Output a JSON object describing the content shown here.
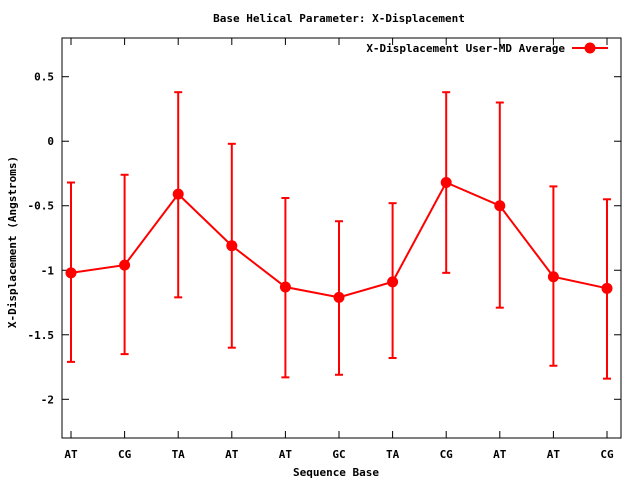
{
  "chart_data": {
    "type": "line",
    "title": "Base  Helical Parameter: X-Displacement",
    "xlabel": "Sequence Base",
    "ylabel": "X-Displacement (Angstroms)",
    "categories": [
      "AT",
      "CG",
      "TA",
      "AT",
      "AT",
      "GC",
      "TA",
      "CG",
      "AT",
      "AT",
      "CG"
    ],
    "ylim": [
      -2.3,
      0.8
    ],
    "yticks": [
      0.5,
      0,
      -0.5,
      -1,
      -1.5,
      -2
    ],
    "ytick_labels": [
      "0.5",
      "0",
      "-0.5",
      "-1",
      "-1.5",
      "-2"
    ],
    "grid": false,
    "legend_position": "top-right",
    "series": [
      {
        "name": "X-Displacement User-MD Average",
        "color": "#ff0000",
        "values": [
          -1.02,
          -0.96,
          -0.41,
          -0.81,
          -1.13,
          -1.21,
          -1.09,
          -0.32,
          -0.5,
          -1.05,
          -1.14
        ],
        "error_low": [
          -1.71,
          -1.65,
          -1.21,
          -1.6,
          -1.83,
          -1.81,
          -1.68,
          -1.02,
          -1.29,
          -1.74,
          -1.84
        ],
        "error_high": [
          -0.32,
          -0.26,
          0.38,
          -0.02,
          -0.44,
          -0.62,
          -0.48,
          0.38,
          0.3,
          -0.35,
          -0.45
        ]
      }
    ]
  }
}
